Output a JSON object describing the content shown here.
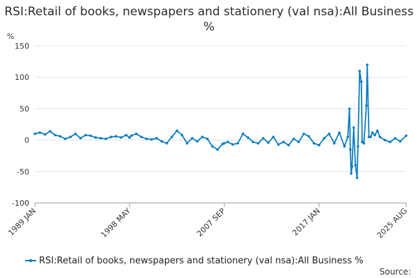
{
  "chart_data": {
    "type": "line",
    "title": "RSI:Retail of books, newspapers and stationery (val nsa):All Business %",
    "ylabel": "%",
    "ylim": [
      -100,
      150
    ],
    "yticks": [
      "150",
      "100",
      "50",
      "0",
      "-50",
      "-100"
    ],
    "xlim": [
      "1989 JAN",
      "2025 AUG"
    ],
    "xticks": [
      "1989 JAN",
      "1998 MAY",
      "2007 SEP",
      "2017 JAN",
      "2025 AUG"
    ],
    "grid": "horizontal",
    "legend_position": "bottom",
    "series": [
      {
        "name": "RSI:Retail of books, newspapers and stationery (val nsa):All Business %",
        "color": "#0b7dbf",
        "points": [
          [
            "1989 JAN",
            10
          ],
          [
            "1989 JUL",
            12
          ],
          [
            "1990 JAN",
            9
          ],
          [
            "1990 JUL",
            14
          ],
          [
            "1991 JAN",
            8
          ],
          [
            "1991 JUL",
            6
          ],
          [
            "1992 JAN",
            2
          ],
          [
            "1992 JUL",
            5
          ],
          [
            "1993 JAN",
            10
          ],
          [
            "1993 JUL",
            3
          ],
          [
            "1994 JAN",
            8
          ],
          [
            "1994 JUL",
            7
          ],
          [
            "1995 JAN",
            4
          ],
          [
            "1995 JUL",
            3
          ],
          [
            "1996 JAN",
            2
          ],
          [
            "1996 JUL",
            5
          ],
          [
            "1997 JAN",
            6
          ],
          [
            "1997 JUL",
            4
          ],
          [
            "1998 JAN",
            8
          ],
          [
            "1998 MAY",
            4
          ],
          [
            "1998 JUL",
            7
          ],
          [
            "1999 JAN",
            10
          ],
          [
            "1999 JUL",
            5
          ],
          [
            "2000 JAN",
            2
          ],
          [
            "2000 JUL",
            1
          ],
          [
            "2001 JAN",
            3
          ],
          [
            "2001 JUL",
            -2
          ],
          [
            "2002 JAN",
            -5
          ],
          [
            "2002 JUL",
            5
          ],
          [
            "2003 JAN",
            15
          ],
          [
            "2003 JUL",
            8
          ],
          [
            "2004 JAN",
            -5
          ],
          [
            "2004 JUL",
            3
          ],
          [
            "2005 JAN",
            -2
          ],
          [
            "2005 JUL",
            5
          ],
          [
            "2006 JAN",
            2
          ],
          [
            "2006 JUL",
            -10
          ],
          [
            "2007 JAN",
            -15
          ],
          [
            "2007 JUL",
            -6
          ],
          [
            "2007 SEP",
            -5
          ],
          [
            "2008 JAN",
            -3
          ],
          [
            "2008 JUL",
            -7
          ],
          [
            "2009 JAN",
            -5
          ],
          [
            "2009 JUL",
            10
          ],
          [
            "2010 JAN",
            4
          ],
          [
            "2010 JUL",
            -3
          ],
          [
            "2011 JAN",
            -5
          ],
          [
            "2011 JUL",
            3
          ],
          [
            "2012 JAN",
            -4
          ],
          [
            "2012 JUL",
            5
          ],
          [
            "2013 JAN",
            -7
          ],
          [
            "2013 JUL",
            -3
          ],
          [
            "2014 JAN",
            -8
          ],
          [
            "2014 JUL",
            2
          ],
          [
            "2015 JAN",
            -3
          ],
          [
            "2015 JUL",
            10
          ],
          [
            "2016 JAN",
            6
          ],
          [
            "2016 JUL",
            -5
          ],
          [
            "2017 JAN",
            -8
          ],
          [
            "2017 JUL",
            3
          ],
          [
            "2018 JAN",
            10
          ],
          [
            "2018 JUL",
            -5
          ],
          [
            "2019 JAN",
            12
          ],
          [
            "2019 JUL",
            -10
          ],
          [
            "2019 NOV",
            5
          ],
          [
            "2020 JAN",
            50
          ],
          [
            "2020 FEB",
            -15
          ],
          [
            "2020 MAR",
            -53
          ],
          [
            "2020 APR",
            -42
          ],
          [
            "2020 JUN",
            20
          ],
          [
            "2020 AUG",
            -40
          ],
          [
            "2020 OCT",
            -60
          ],
          [
            "2020 NOV",
            -10
          ],
          [
            "2021 JAN",
            110
          ],
          [
            "2021 MAR",
            93
          ],
          [
            "2021 APR",
            -3
          ],
          [
            "2021 JUN",
            -5
          ],
          [
            "2021 SEP",
            55
          ],
          [
            "2021 OCT",
            120
          ],
          [
            "2021 DEC",
            5
          ],
          [
            "2022 FEB",
            5
          ],
          [
            "2022 APR",
            12
          ],
          [
            "2022 JUL",
            8
          ],
          [
            "2022 OCT",
            15
          ],
          [
            "2023 JAN",
            5
          ],
          [
            "2023 JUL",
            0
          ],
          [
            "2024 JAN",
            -3
          ],
          [
            "2024 JUL",
            3
          ],
          [
            "2025 JAN",
            -2
          ],
          [
            "2025 AUG",
            7
          ]
        ]
      }
    ],
    "source_label": "Source:"
  }
}
